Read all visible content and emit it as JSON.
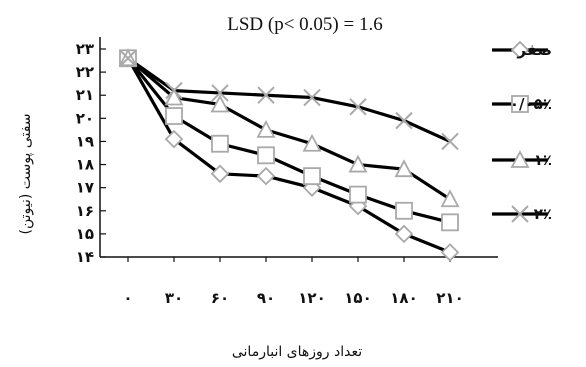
{
  "chart_data": {
    "type": "line",
    "title": "LSD (p< 0.05) = 1.6",
    "xlabel": "تعداد روزهای انبارمانی",
    "ylabel": "سفتی پوست (نیوتن)",
    "x": [
      0,
      30,
      60,
      90,
      120,
      150,
      180,
      210
    ],
    "x_tick_labels": [
      "۰",
      "۳۰",
      "۶۰",
      "۹۰",
      "۱۲۰",
      "۱۵۰",
      "۱۸۰",
      "۲۱۰"
    ],
    "y_ticks": [
      14,
      15,
      16,
      17,
      18,
      19,
      20,
      21,
      22,
      23
    ],
    "y_tick_labels": [
      "۱۴",
      "۱۵",
      "۱۶",
      "۱۷",
      "۱۸",
      "۱۹",
      "۲۰",
      "۲۱",
      "۲۲",
      "۲۳"
    ],
    "ylim": [
      14,
      23
    ],
    "grid": false,
    "legend_position": "right",
    "series": [
      {
        "name": "صفر",
        "marker": "diamond",
        "values": [
          22.6,
          19.1,
          17.6,
          17.5,
          17.0,
          16.2,
          15.0,
          14.2
        ]
      },
      {
        "name": "۰/۰۵٪",
        "marker": "square",
        "values": [
          22.6,
          20.1,
          18.9,
          18.4,
          17.5,
          16.7,
          16.0,
          15.5
        ]
      },
      {
        "name": "۱٪",
        "marker": "triangle",
        "values": [
          22.6,
          20.9,
          20.6,
          19.5,
          18.9,
          18.0,
          17.8,
          16.5
        ]
      },
      {
        "name": "۲٪",
        "marker": "x",
        "values": [
          22.6,
          21.2,
          21.1,
          21.0,
          20.9,
          20.5,
          19.9,
          19.0
        ]
      }
    ]
  }
}
